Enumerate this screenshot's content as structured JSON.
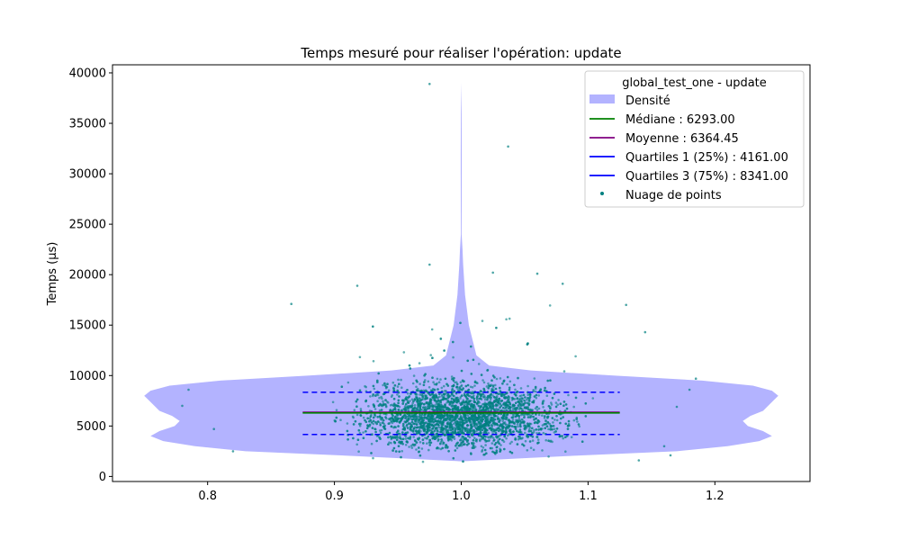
{
  "chart_data": {
    "type": "violin",
    "title": "Temps mesuré pour réaliser l'opération: update",
    "xlabel": "",
    "ylabel": "Temps (µs)",
    "xlim": [
      0.725,
      1.275
    ],
    "ylim": [
      -500,
      40800
    ],
    "x_ticks": [
      0.8,
      0.9,
      1.0,
      1.1,
      1.2
    ],
    "x_tick_labels": [
      "0.8",
      "0.9",
      "1.0",
      "1.1",
      "1.2"
    ],
    "y_ticks": [
      0,
      5000,
      10000,
      15000,
      20000,
      25000,
      30000,
      35000,
      40000
    ],
    "y_tick_labels": [
      "0",
      "5000",
      "10000",
      "15000",
      "20000",
      "25000",
      "30000",
      "35000",
      "40000"
    ],
    "grid": false,
    "legend_placement": "top-right",
    "legend_title": "global_test_one - update",
    "violin_center": 1.0,
    "violin_max_halfwidth": 0.25,
    "density_profile": [
      {
        "y": 1500,
        "w": 0.0
      },
      {
        "y": 2000,
        "w": 0.08
      },
      {
        "y": 2500,
        "w": 0.17
      },
      {
        "y": 3000,
        "w": 0.21
      },
      {
        "y": 3500,
        "w": 0.235
      },
      {
        "y": 4000,
        "w": 0.245
      },
      {
        "y": 4500,
        "w": 0.238
      },
      {
        "y": 5000,
        "w": 0.226
      },
      {
        "y": 5500,
        "w": 0.222
      },
      {
        "y": 6000,
        "w": 0.228
      },
      {
        "y": 6500,
        "w": 0.238
      },
      {
        "y": 7000,
        "w": 0.242
      },
      {
        "y": 7500,
        "w": 0.246
      },
      {
        "y": 8000,
        "w": 0.25
      },
      {
        "y": 8500,
        "w": 0.245
      },
      {
        "y": 9000,
        "w": 0.23
      },
      {
        "y": 9500,
        "w": 0.19
      },
      {
        "y": 10000,
        "w": 0.12
      },
      {
        "y": 10500,
        "w": 0.055
      },
      {
        "y": 11000,
        "w": 0.022
      },
      {
        "y": 12000,
        "w": 0.012
      },
      {
        "y": 13000,
        "w": 0.01
      },
      {
        "y": 14000,
        "w": 0.008
      },
      {
        "y": 15000,
        "w": 0.006
      },
      {
        "y": 16000,
        "w": 0.005
      },
      {
        "y": 17000,
        "w": 0.004
      },
      {
        "y": 18000,
        "w": 0.003
      },
      {
        "y": 19000,
        "w": 0.0025
      },
      {
        "y": 20000,
        "w": 0.002
      },
      {
        "y": 21000,
        "w": 0.0015
      },
      {
        "y": 22500,
        "w": 0.001
      },
      {
        "y": 24000,
        "w": 0.0003
      },
      {
        "y": 30000,
        "w": 0.0004
      },
      {
        "y": 32000,
        "w": 0.0004
      },
      {
        "y": 36000,
        "w": 0.0003
      },
      {
        "y": 39000,
        "w": 0.0
      }
    ],
    "median": 6293.0,
    "mean": 6364.45,
    "q1": 4161.0,
    "q3": 8341.0,
    "stat_line_x_range": [
      0.875,
      1.125
    ],
    "outliers": [
      {
        "x": 0.975,
        "y": 38900
      },
      {
        "x": 1.037,
        "y": 32700
      },
      {
        "x": 0.975,
        "y": 21000
      },
      {
        "x": 1.025,
        "y": 20200
      },
      {
        "x": 1.06,
        "y": 20100
      },
      {
        "x": 0.918,
        "y": 18900
      },
      {
        "x": 1.08,
        "y": 19100
      },
      {
        "x": 0.866,
        "y": 17100
      },
      {
        "x": 1.13,
        "y": 17000
      },
      {
        "x": 1.145,
        "y": 14300
      },
      {
        "x": 0.785,
        "y": 8600
      },
      {
        "x": 0.78,
        "y": 7000
      },
      {
        "x": 0.805,
        "y": 4700
      },
      {
        "x": 0.82,
        "y": 2500
      },
      {
        "x": 1.185,
        "y": 9700
      },
      {
        "x": 1.18,
        "y": 8600
      },
      {
        "x": 1.165,
        "y": 2100
      },
      {
        "x": 1.16,
        "y": 3000
      },
      {
        "x": 1.17,
        "y": 6900
      },
      {
        "x": 1.14,
        "y": 1600
      }
    ],
    "series": [
      {
        "name": "Densité",
        "type": "violin",
        "color": "#b3b3ff"
      },
      {
        "name": "Médiane : 6293.00",
        "type": "line",
        "color": "#008000",
        "value": 6293.0
      },
      {
        "name": "Moyenne : 6364.45",
        "type": "line",
        "color": "#800080",
        "value": 6364.45
      },
      {
        "name": "Quartiles 1 (25%) : 4161.00",
        "type": "line",
        "color": "#0000ff",
        "value": 4161.0
      },
      {
        "name": "Quartiles 3 (75%) : 8341.00",
        "type": "line",
        "color": "#0000ff",
        "value": 8341.0
      },
      {
        "name": "Nuage de points",
        "type": "scatter",
        "color": "#008080"
      }
    ]
  }
}
